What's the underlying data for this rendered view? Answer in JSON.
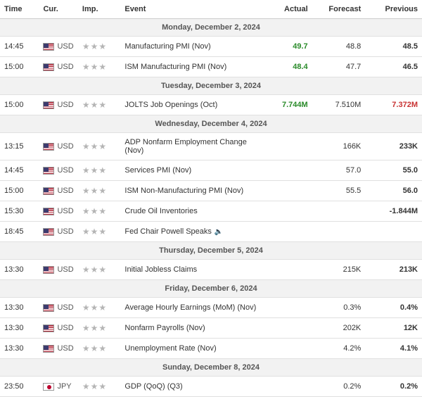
{
  "headers": {
    "time": "Time",
    "cur": "Cur.",
    "imp": "Imp.",
    "event": "Event",
    "actual": "Actual",
    "forecast": "Forecast",
    "previous": "Previous"
  },
  "colors": {
    "up": "#2a8b2a",
    "down": "#c83232",
    "header_bg": "#f2f2f2",
    "border": "#e0e0e0",
    "star": "#b5b5b5"
  },
  "days": [
    {
      "label": "Monday, December 2, 2024",
      "rows": [
        {
          "time": "14:45",
          "flag": "us",
          "cur": "USD",
          "imp": 3,
          "event": "Manufacturing PMI (Nov)",
          "actual": "49.7",
          "actual_style": "green",
          "forecast": "48.8",
          "previous": "48.5",
          "previous_style": "bold"
        },
        {
          "time": "15:00",
          "flag": "us",
          "cur": "USD",
          "imp": 3,
          "event": "ISM Manufacturing PMI (Nov)",
          "actual": "48.4",
          "actual_style": "green",
          "forecast": "47.7",
          "previous": "46.5",
          "previous_style": "bold"
        }
      ]
    },
    {
      "label": "Tuesday, December 3, 2024",
      "rows": [
        {
          "time": "15:00",
          "flag": "us",
          "cur": "USD",
          "imp": 3,
          "event": "JOLTS Job Openings (Oct)",
          "actual": "7.744M",
          "actual_style": "green",
          "forecast": "7.510M",
          "previous": "7.372M",
          "previous_style": "red"
        }
      ]
    },
    {
      "label": "Wednesday, December 4, 2024",
      "rows": [
        {
          "time": "13:15",
          "flag": "us",
          "cur": "USD",
          "imp": 3,
          "event": "ADP Nonfarm Employment Change (Nov)",
          "actual": "",
          "actual_style": "",
          "forecast": "166K",
          "previous": "233K",
          "previous_style": "bold"
        },
        {
          "time": "14:45",
          "flag": "us",
          "cur": "USD",
          "imp": 3,
          "event": "Services PMI (Nov)",
          "actual": "",
          "actual_style": "",
          "forecast": "57.0",
          "previous": "55.0",
          "previous_style": "bold"
        },
        {
          "time": "15:00",
          "flag": "us",
          "cur": "USD",
          "imp": 3,
          "event": "ISM Non-Manufacturing PMI (Nov)",
          "actual": "",
          "actual_style": "",
          "forecast": "55.5",
          "previous": "56.0",
          "previous_style": "bold"
        },
        {
          "time": "15:30",
          "flag": "us",
          "cur": "USD",
          "imp": 3,
          "event": "Crude Oil Inventories",
          "actual": "",
          "actual_style": "",
          "forecast": "",
          "previous": "-1.844M",
          "previous_style": "bold"
        },
        {
          "time": "18:45",
          "flag": "us",
          "cur": "USD",
          "imp": 3,
          "event": "Fed Chair Powell Speaks",
          "speaker": true,
          "actual": "",
          "actual_style": "",
          "forecast": "",
          "previous": "",
          "previous_style": ""
        }
      ]
    },
    {
      "label": "Thursday, December 5, 2024",
      "rows": [
        {
          "time": "13:30",
          "flag": "us",
          "cur": "USD",
          "imp": 3,
          "event": "Initial Jobless Claims",
          "actual": "",
          "actual_style": "",
          "forecast": "215K",
          "previous": "213K",
          "previous_style": "bold"
        }
      ]
    },
    {
      "label": "Friday, December 6, 2024",
      "rows": [
        {
          "time": "13:30",
          "flag": "us",
          "cur": "USD",
          "imp": 3,
          "event": "Average Hourly Earnings (MoM) (Nov)",
          "actual": "",
          "actual_style": "",
          "forecast": "0.3%",
          "previous": "0.4%",
          "previous_style": "bold"
        },
        {
          "time": "13:30",
          "flag": "us",
          "cur": "USD",
          "imp": 3,
          "event": "Nonfarm Payrolls (Nov)",
          "actual": "",
          "actual_style": "",
          "forecast": "202K",
          "previous": "12K",
          "previous_style": "bold"
        },
        {
          "time": "13:30",
          "flag": "us",
          "cur": "USD",
          "imp": 3,
          "event": "Unemployment Rate (Nov)",
          "actual": "",
          "actual_style": "",
          "forecast": "4.2%",
          "previous": "4.1%",
          "previous_style": "bold"
        }
      ]
    },
    {
      "label": "Sunday, December 8, 2024",
      "rows": [
        {
          "time": "23:50",
          "flag": "jp",
          "cur": "JPY",
          "imp": 3,
          "event": "GDP (QoQ) (Q3)",
          "actual": "",
          "actual_style": "",
          "forecast": "0.2%",
          "previous": "0.2%",
          "previous_style": "bold"
        }
      ]
    }
  ]
}
